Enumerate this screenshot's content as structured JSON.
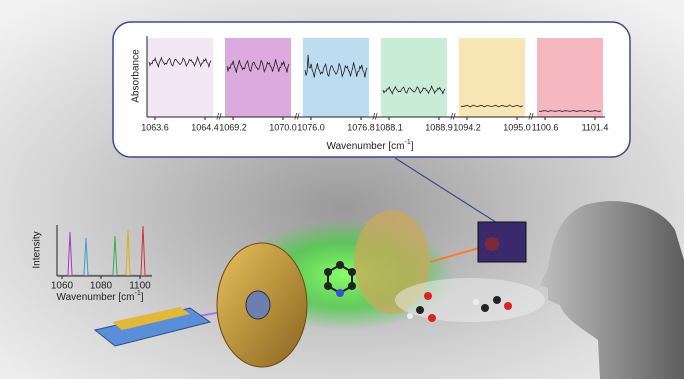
{
  "inset": {
    "y_label": "Absorbance",
    "x_label": "Wavenumber [cm",
    "x_label_sup": "-1",
    "x_label_end": "]",
    "panels": [
      {
        "ticks": [
          "1063.6",
          "1064.4"
        ]
      },
      {
        "ticks": [
          "1069.2",
          "1070.0"
        ]
      },
      {
        "ticks": [
          "1076.0",
          "1076.8"
        ]
      },
      {
        "ticks": [
          "1088.1",
          "1088.9"
        ]
      },
      {
        "ticks": [
          "1094.2",
          "1095.0"
        ]
      },
      {
        "ticks": [
          "1100.6",
          "1101.4"
        ]
      }
    ]
  },
  "emission": {
    "y_label": "Intensity",
    "x_label": "Wavenumber [cm",
    "x_label_sup": "-1",
    "x_label_end": "]",
    "ticks": [
      "1060",
      "1080",
      "1100"
    ]
  }
}
